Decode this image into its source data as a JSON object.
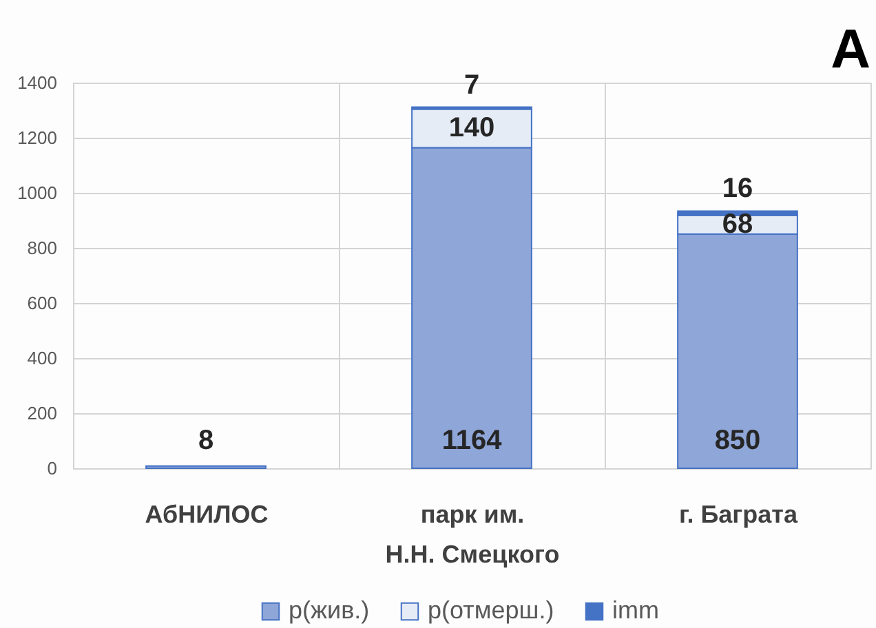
{
  "chart_data": {
    "type": "bar",
    "title": "A",
    "categories": [
      "АбНИЛОС",
      "парк им. Н.Н. Смецкого",
      "г. Баграта"
    ],
    "stacked": true,
    "series": [
      {
        "name": "p(жив.)",
        "color": "#8fa6d8",
        "values": [
          8,
          1164,
          850
        ]
      },
      {
        "name": "p(отмерш.)",
        "color": "#e6ecf6",
        "values": [
          null,
          140,
          68
        ]
      },
      {
        "name": "imm",
        "color": "#4472c4",
        "values": [
          null,
          7,
          16
        ]
      }
    ],
    "ylim": [
      0,
      1400
    ],
    "yticks": [
      0,
      200,
      400,
      600,
      800,
      1000,
      1200,
      1400
    ],
    "grid": true,
    "legend": "bottom",
    "data_labels": true
  }
}
